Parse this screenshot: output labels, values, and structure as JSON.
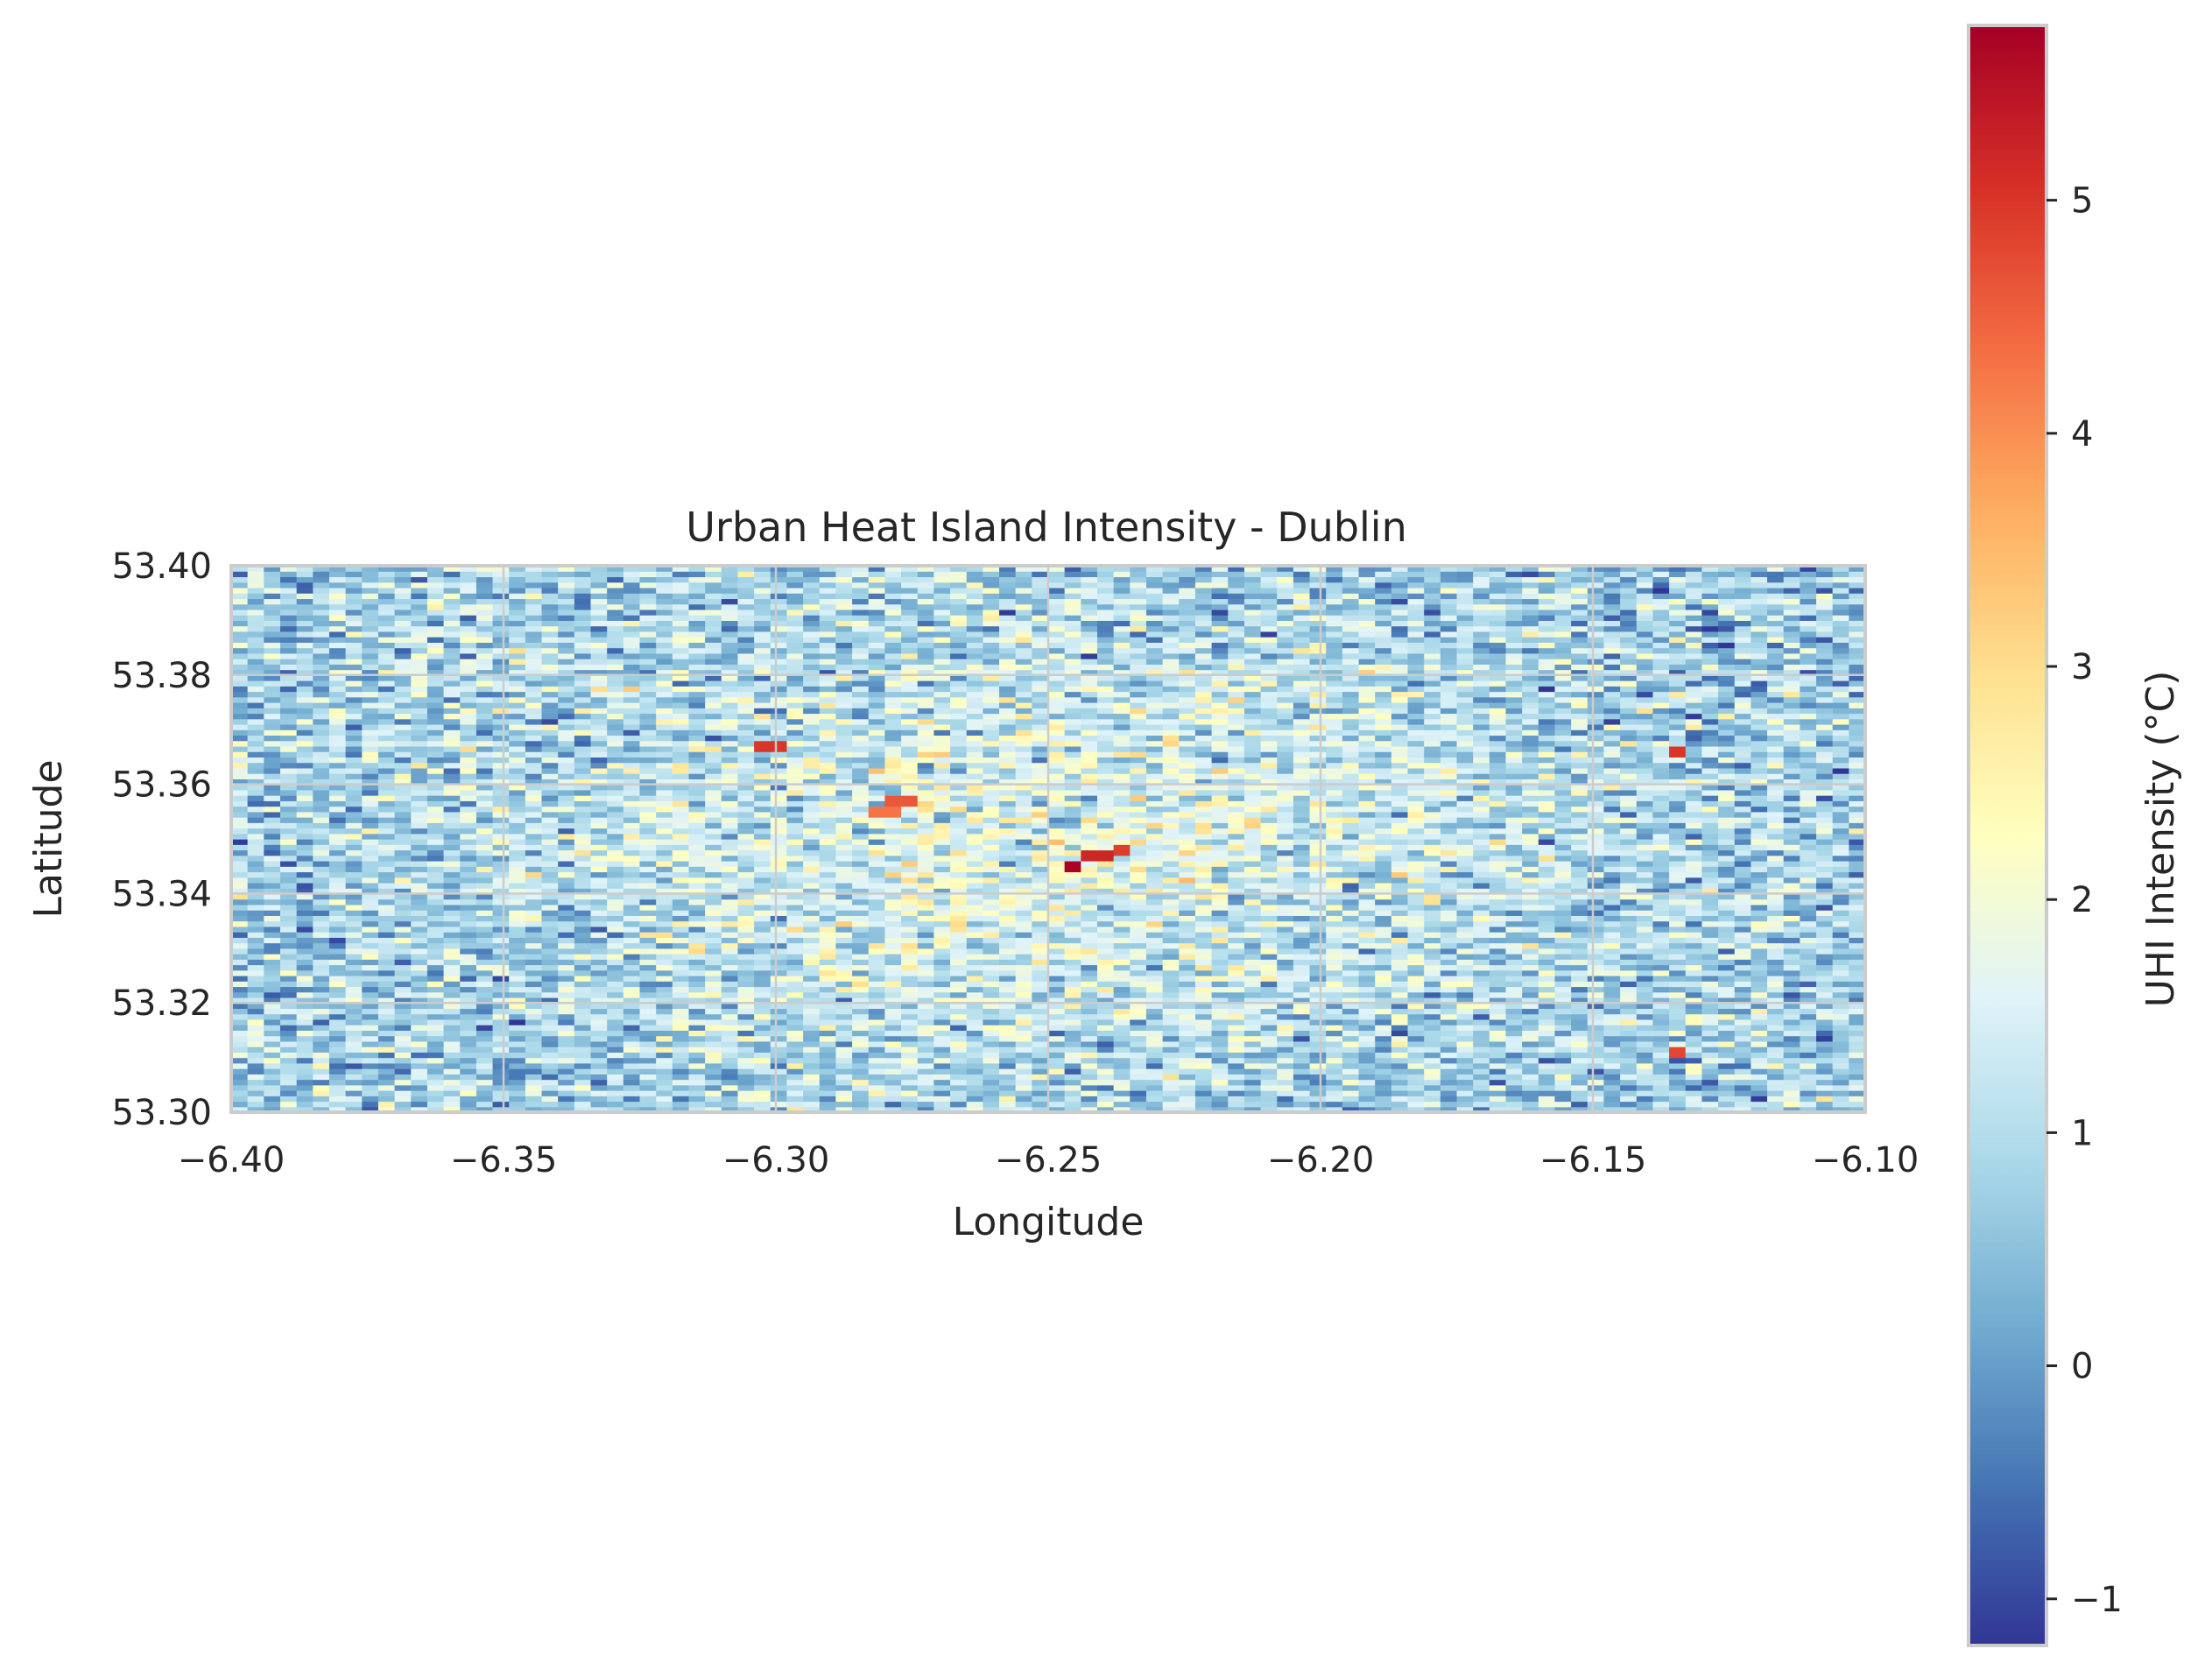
{
  "chart_data": {
    "type": "heatmap",
    "title": "Urban Heat Island Intensity - Dublin",
    "xlabel": "Longitude",
    "ylabel": "Latitude",
    "xlim": [
      -6.4,
      -6.1
    ],
    "ylim": [
      53.3,
      53.4
    ],
    "xticks": [
      -6.4,
      -6.35,
      -6.3,
      -6.25,
      -6.2,
      -6.15,
      -6.1
    ],
    "xtick_labels": [
      "−6.40",
      "−6.35",
      "−6.30",
      "−6.25",
      "−6.20",
      "−6.15",
      "−6.10"
    ],
    "yticks": [
      53.3,
      53.32,
      53.34,
      53.36,
      53.38,
      53.4
    ],
    "ytick_labels": [
      "53.30",
      "53.32",
      "53.34",
      "53.36",
      "53.38",
      "53.40"
    ],
    "grid": true,
    "grid_shape": [
      100,
      100
    ],
    "value_range": [
      -1.2,
      5.75
    ],
    "colormap": "RdYlBu_r",
    "center": {
      "lon": -6.25,
      "lat": 53.35
    },
    "hotspots": [
      {
        "lon": -6.246,
        "lat": 53.345,
        "value": 5.7
      },
      {
        "lon": -6.241,
        "lat": 53.347,
        "value": 5.2
      },
      {
        "lon": -6.237,
        "lat": 53.348,
        "value": 4.9
      },
      {
        "lon": -6.301,
        "lat": 53.367,
        "value": 5.0
      },
      {
        "lon": -6.135,
        "lat": 53.366,
        "value": 5.0
      },
      {
        "lon": -6.135,
        "lat": 53.311,
        "value": 4.8
      },
      {
        "lon": -6.277,
        "lat": 53.357,
        "value": 4.6
      },
      {
        "lon": -6.28,
        "lat": 53.355,
        "value": 4.3
      }
    ],
    "colorbar": {
      "label": "UHI Intensity (°C)",
      "ticks": [
        -1,
        0,
        1,
        2,
        3,
        4,
        5
      ],
      "tick_labels": [
        "−1",
        "0",
        "1",
        "2",
        "3",
        "4",
        "5"
      ]
    }
  }
}
